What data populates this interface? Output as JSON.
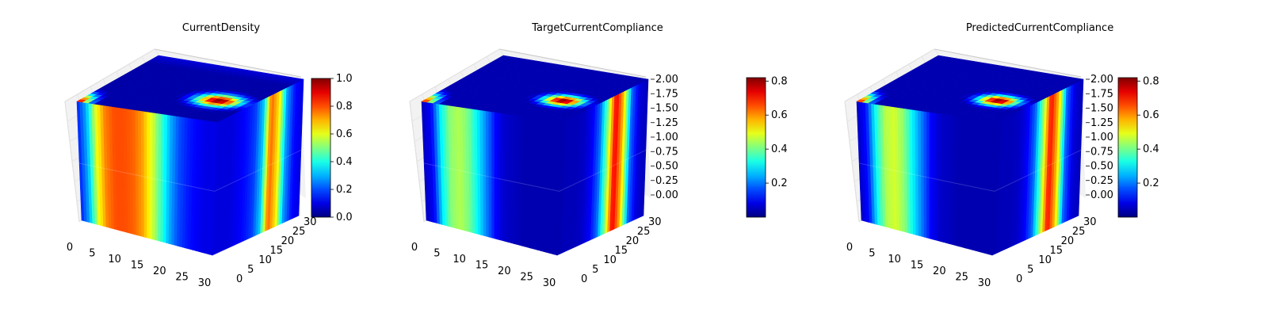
{
  "chart_data": [
    {
      "type": "heatmap",
      "title": "CurrentDensity",
      "x_ticks": [
        "0",
        "5",
        "10",
        "15",
        "20",
        "25",
        "30"
      ],
      "y_ticks": [
        "0",
        "5",
        "10",
        "15",
        "20",
        "25",
        "30"
      ],
      "z_ticks": [],
      "colormap": "jet",
      "colorbar": {
        "min": 0.0,
        "max": 1.0,
        "ticks": [
          "0.0",
          "0.2",
          "0.4",
          "0.6",
          "0.8",
          "1.0"
        ]
      },
      "front_profile": [
        0.15,
        0.3,
        0.6,
        0.75,
        0.8,
        0.8,
        0.78,
        0.72,
        0.6,
        0.45,
        0.3,
        0.2,
        0.15,
        0.12,
        0.1,
        0.1
      ],
      "side_profile": [
        0.1,
        0.1,
        0.1,
        0.12,
        0.15,
        0.2,
        0.35,
        0.85,
        0.7,
        0.3,
        0.15,
        0.1
      ],
      "top_hotspot": {
        "x": 0.78,
        "y": 0.62,
        "r": 0.16,
        "value": 1.0
      },
      "top_corner": {
        "value": 0.9
      }
    },
    {
      "type": "heatmap",
      "title": "TargetCurrentCompliance",
      "x_ticks": [
        "0",
        "5",
        "10",
        "15",
        "20",
        "25",
        "30"
      ],
      "y_ticks": [
        "0",
        "5",
        "10",
        "15",
        "20",
        "25",
        "30"
      ],
      "z_ticks": [
        "0.00",
        "0.25",
        "0.50",
        "0.75",
        "1.00",
        "1.25",
        "1.50",
        "1.75",
        "2.00"
      ],
      "colormap": "jet",
      "colorbar": {
        "min": 0.0,
        "max": 0.82,
        "ticks": [
          "0.2",
          "0.4",
          "0.6",
          "0.8"
        ]
      },
      "front_profile": [
        0.05,
        0.1,
        0.3,
        0.42,
        0.45,
        0.4,
        0.3,
        0.2,
        0.1,
        0.06,
        0.05,
        0.04,
        0.04,
        0.04,
        0.04,
        0.04
      ],
      "side_profile": [
        0.04,
        0.05,
        0.05,
        0.06,
        0.1,
        0.2,
        0.45,
        0.8,
        0.6,
        0.2,
        0.08,
        0.05
      ],
      "top_hotspot": {
        "x": 0.78,
        "y": 0.62,
        "r": 0.14,
        "value": 0.82
      },
      "top_corner": {
        "value": 0.7
      }
    },
    {
      "type": "heatmap",
      "title": "PredictedCurrentCompliance",
      "x_ticks": [
        "0",
        "5",
        "10",
        "15",
        "20",
        "25",
        "30"
      ],
      "y_ticks": [
        "0",
        "5",
        "10",
        "15",
        "20",
        "25",
        "30"
      ],
      "z_ticks": [
        "0.00",
        "0.25",
        "0.50",
        "0.75",
        "1.00",
        "1.25",
        "1.50",
        "1.75",
        "2.00"
      ],
      "colormap": "jet",
      "colorbar": {
        "min": 0.0,
        "max": 0.82,
        "ticks": [
          "0.2",
          "0.4",
          "0.6",
          "0.8"
        ]
      },
      "front_profile": [
        0.05,
        0.12,
        0.32,
        0.45,
        0.48,
        0.42,
        0.3,
        0.2,
        0.1,
        0.06,
        0.05,
        0.04,
        0.04,
        0.04,
        0.04,
        0.04
      ],
      "side_profile": [
        0.04,
        0.05,
        0.05,
        0.06,
        0.1,
        0.2,
        0.45,
        0.78,
        0.6,
        0.2,
        0.08,
        0.05
      ],
      "top_hotspot": {
        "x": 0.78,
        "y": 0.62,
        "r": 0.14,
        "value": 0.82
      },
      "top_corner": {
        "value": 0.7
      }
    }
  ]
}
